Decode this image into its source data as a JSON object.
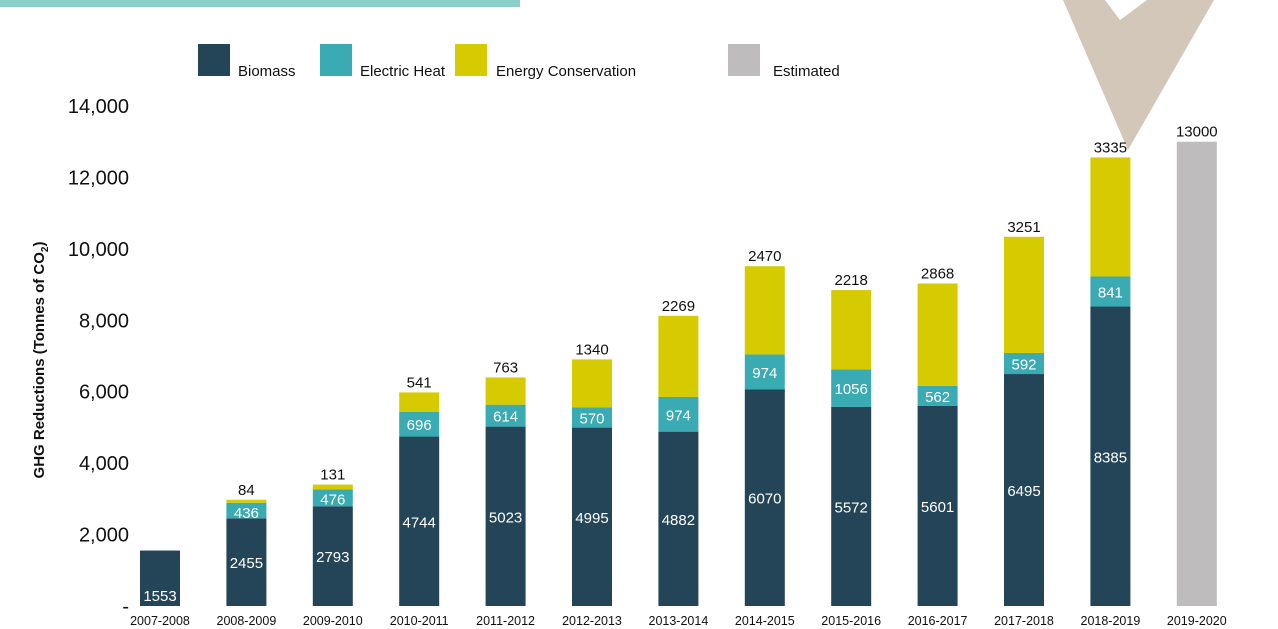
{
  "chart_data": {
    "type": "bar",
    "stacked": true,
    "title": "",
    "xlabel": "",
    "ylabel": "GHG Reductions (Tonnes of CO",
    "ylabel_subscript": "2",
    "ylabel_suffix": ")",
    "ylim": [
      0,
      14000
    ],
    "yticks": [
      0,
      2000,
      4000,
      6000,
      8000,
      10000,
      12000,
      14000
    ],
    "ytick_labels": [
      "-",
      "2,000",
      "4,000",
      "6,000",
      "8,000",
      "10,000",
      "12,000",
      "14,000"
    ],
    "grid": false,
    "legend_position": "top",
    "categories": [
      "2007-2008",
      "2008-2009",
      "2009-2010",
      "2010-2011",
      "2011-2012",
      "2012-2013",
      "2013-2014",
      "2014-2015",
      "2015-2016",
      "2016-2017",
      "2017-2018",
      "2018-2019",
      "2019-2020"
    ],
    "series": [
      {
        "name": "Biomass",
        "color": "#234557",
        "label_color": "#ffffff",
        "values": [
          1553,
          2455,
          2793,
          4744,
          5023,
          4995,
          4882,
          6070,
          5572,
          5601,
          6495,
          8385,
          null
        ],
        "labels": [
          "1553",
          "2455",
          "2793",
          "4744",
          "5023",
          "4995",
          "4882",
          "6070",
          "5572",
          "5601",
          "6495",
          "8385",
          ""
        ]
      },
      {
        "name": "Electric Heat",
        "color": "#3aabb3",
        "label_color": "#ffffff",
        "values": [
          null,
          436,
          476,
          696,
          614,
          570,
          974,
          974,
          1056,
          562,
          592,
          841,
          null
        ],
        "labels": [
          "",
          "436",
          "476",
          "696",
          "614",
          "570",
          "974",
          "974",
          "1056",
          "562",
          "592",
          "841",
          ""
        ]
      },
      {
        "name": "Energy Conservation",
        "color": "#d6cb00",
        "label_color": "#111111",
        "values": [
          null,
          84,
          131,
          541,
          763,
          1340,
          2269,
          2470,
          2218,
          2868,
          3251,
          3335,
          null
        ],
        "labels": [
          "",
          "84",
          "131",
          "541",
          "763",
          "1340",
          "2269",
          "2470",
          "2218",
          "2868",
          "3251",
          "3335",
          ""
        ]
      },
      {
        "name": "Estimated",
        "color": "#bebcbc",
        "label_color": "#111111",
        "values": [
          null,
          null,
          null,
          null,
          null,
          null,
          null,
          null,
          null,
          null,
          null,
          null,
          13000
        ],
        "labels": [
          "",
          "",
          "",
          "",
          "",
          "",
          "",
          "",
          "",
          "",
          "",
          "",
          "13000"
        ]
      }
    ],
    "annotation_arrow": {
      "color": "#d3c7b9",
      "points_to": "2018-2019"
    }
  }
}
